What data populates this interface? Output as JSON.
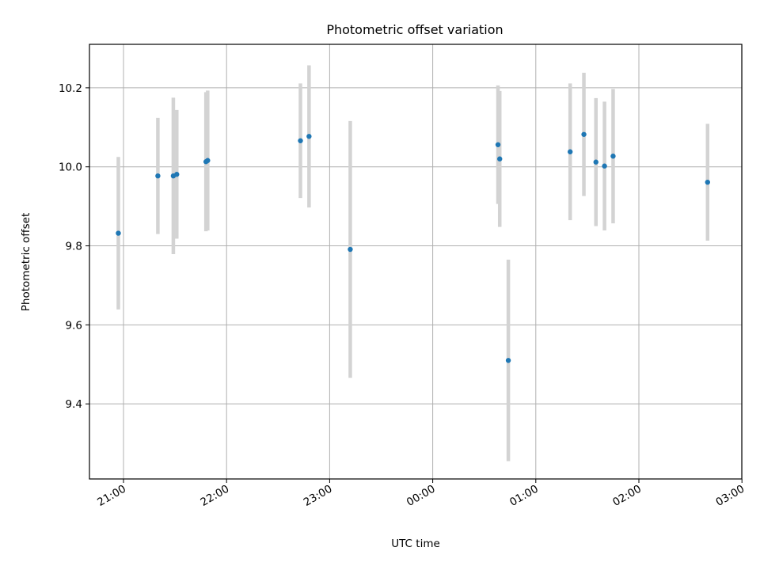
{
  "chart_data": {
    "type": "scatter",
    "title": "Photometric offset variation",
    "xlabel": "UTC time",
    "ylabel": "Photometric offset",
    "x_ticks": [
      "21:00",
      "22:00",
      "23:00",
      "00:00",
      "01:00",
      "02:00",
      "03:00"
    ],
    "y_ticks": [
      "9.4",
      "9.6",
      "9.8",
      "10.0",
      "10.2"
    ],
    "ylim": [
      9.21,
      10.31
    ],
    "grid": true,
    "marker_color": "#1f77b4",
    "errorbar_color": "#d3d3d3",
    "points": [
      {
        "time": "20:57",
        "y": 9.832,
        "err": 0.193
      },
      {
        "time": "21:20",
        "y": 9.977,
        "err": 0.147
      },
      {
        "time": "21:29",
        "y": 9.977,
        "err": 0.198
      },
      {
        "time": "21:31",
        "y": 9.981,
        "err": 0.163
      },
      {
        "time": "21:48",
        "y": 10.013,
        "err": 0.176
      },
      {
        "time": "21:49",
        "y": 10.016,
        "err": 0.177
      },
      {
        "time": "22:43",
        "y": 10.066,
        "err": 0.145
      },
      {
        "time": "22:48",
        "y": 10.077,
        "err": 0.18
      },
      {
        "time": "23:12",
        "y": 9.791,
        "err": 0.325
      },
      {
        "time": "00:38",
        "y": 10.056,
        "err": 0.15
      },
      {
        "time": "00:39",
        "y": 10.02,
        "err": 0.172
      },
      {
        "time": "00:44",
        "y": 9.51,
        "err": 0.255
      },
      {
        "time": "01:20",
        "y": 10.038,
        "err": 0.173
      },
      {
        "time": "01:28",
        "y": 10.082,
        "err": 0.156
      },
      {
        "time": "01:35",
        "y": 10.012,
        "err": 0.162
      },
      {
        "time": "01:40",
        "y": 10.002,
        "err": 0.163
      },
      {
        "time": "01:45",
        "y": 10.027,
        "err": 0.17
      },
      {
        "time": "02:40",
        "y": 9.961,
        "err": 0.148
      }
    ]
  }
}
